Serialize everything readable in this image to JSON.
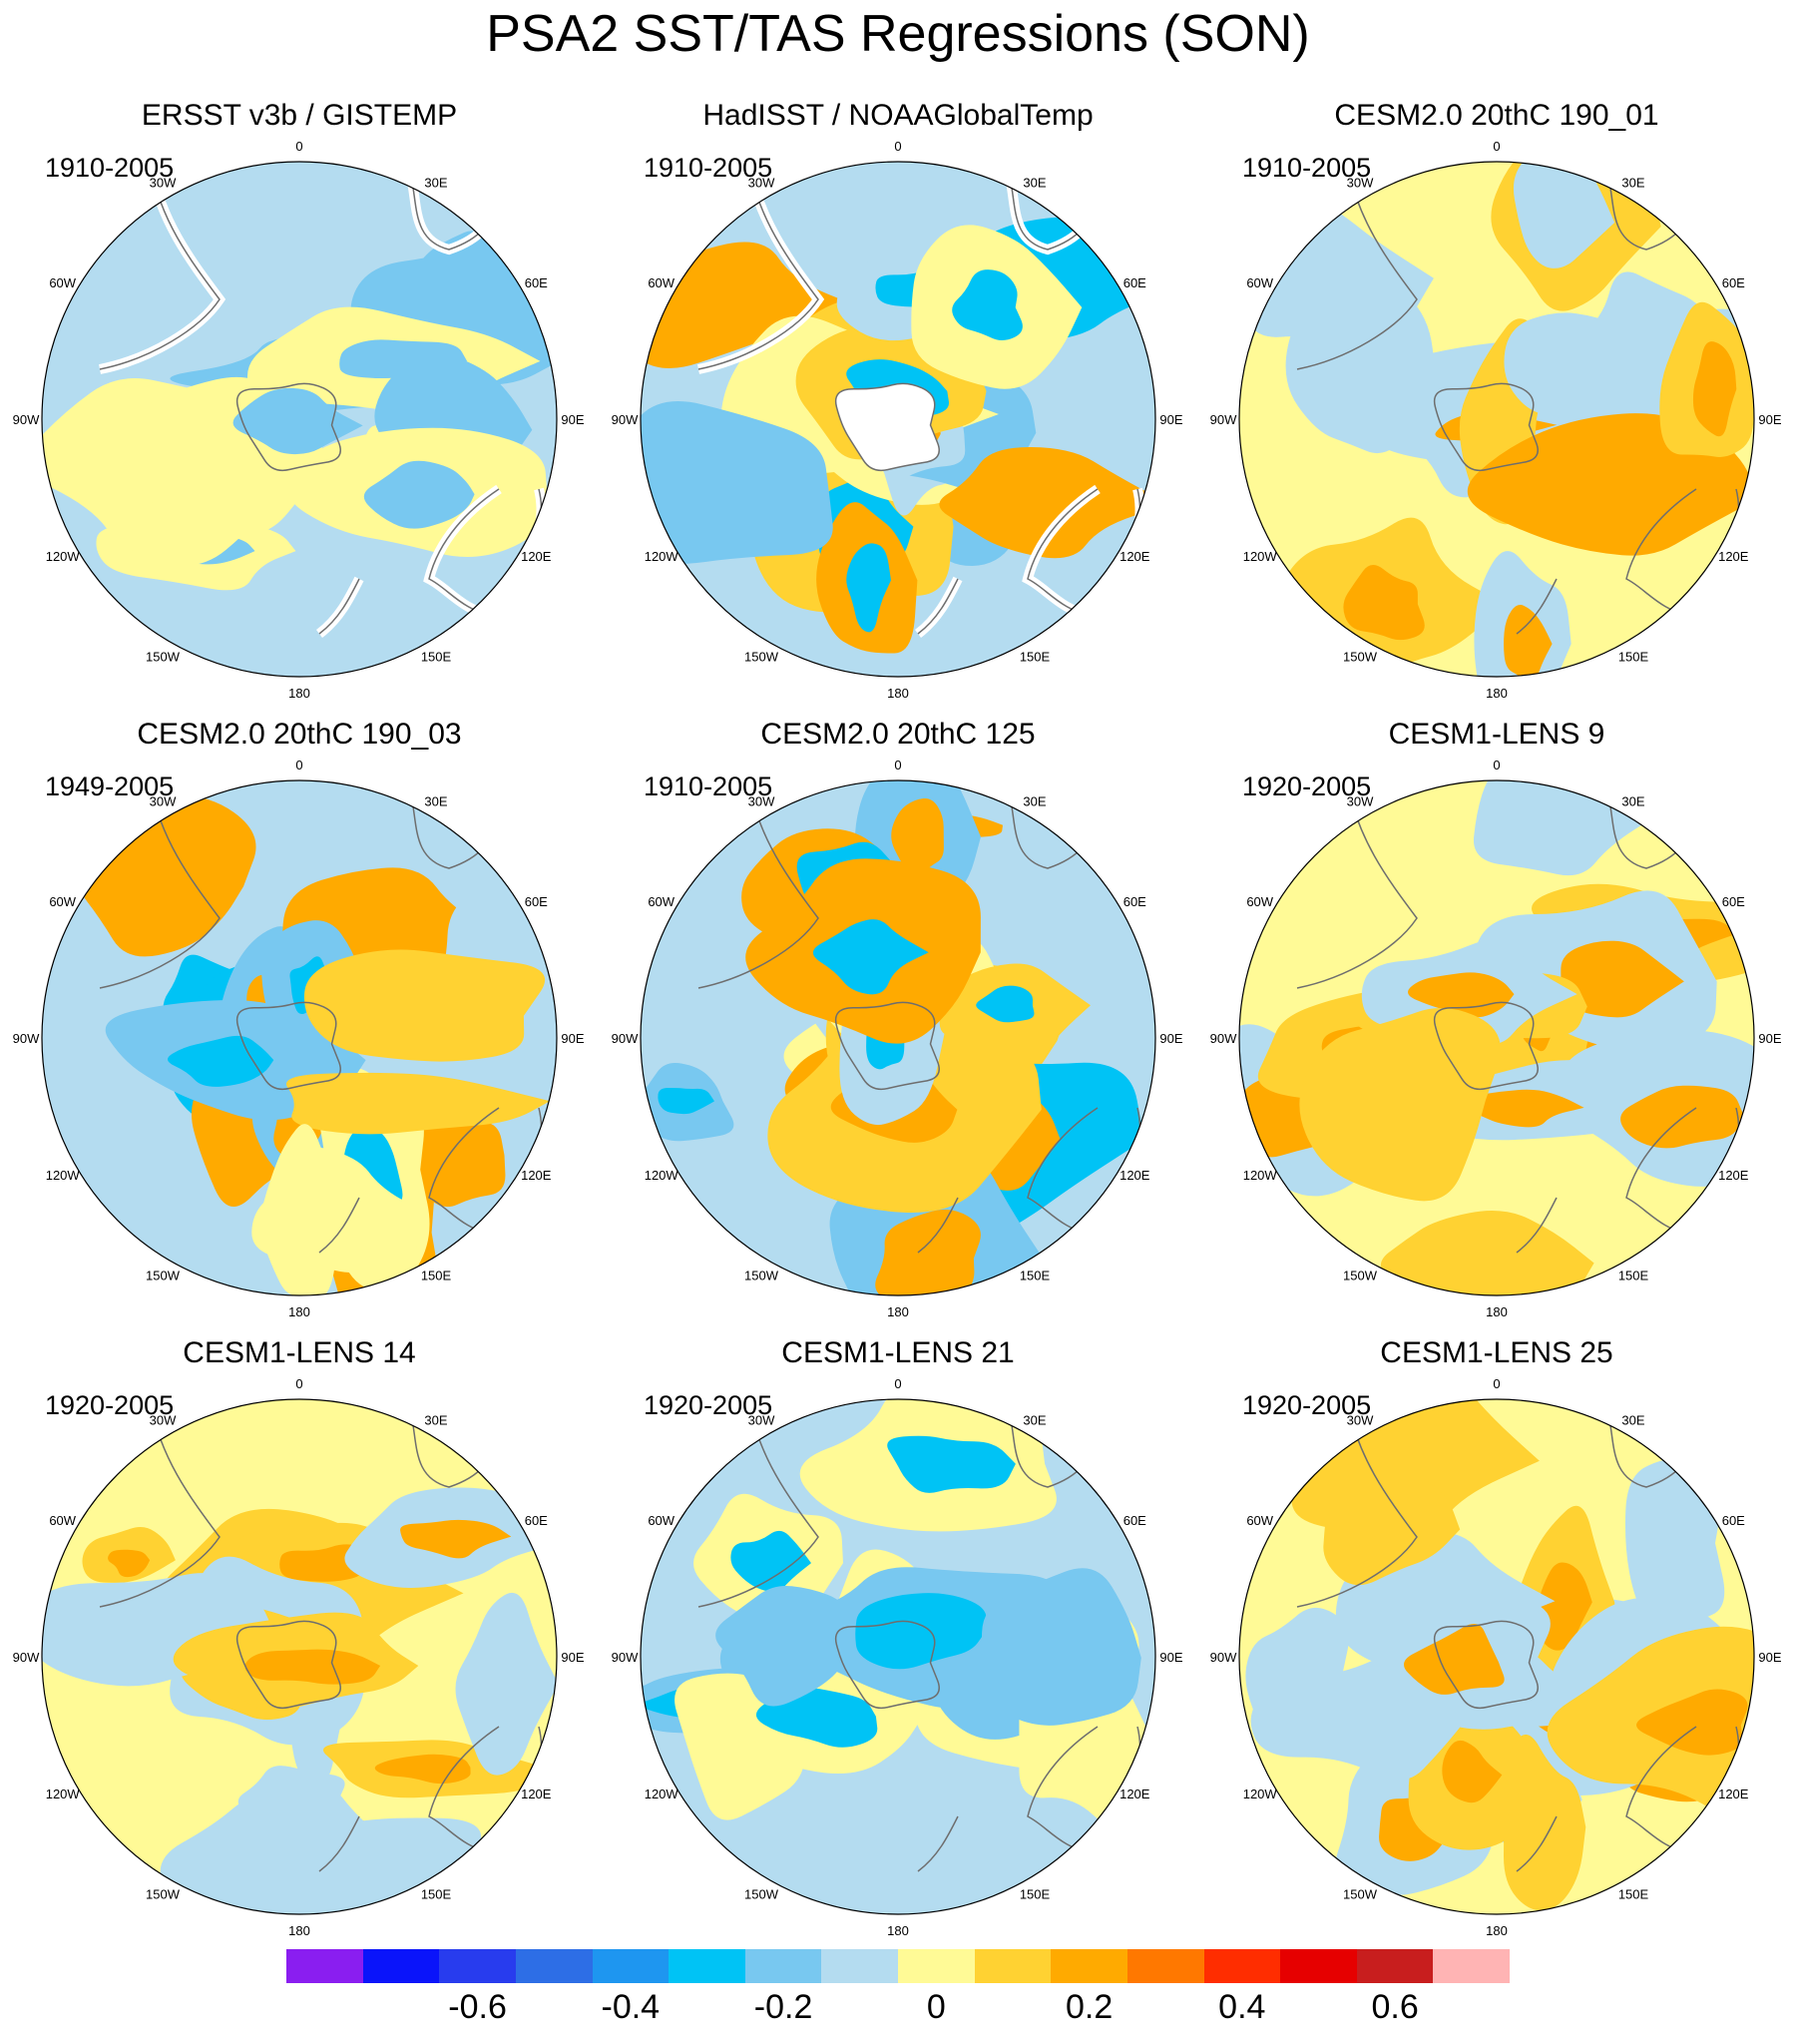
{
  "figure": {
    "title": "PSA2 SST/TAS Regressions (SON)"
  },
  "panels": [
    {
      "title": "ERSST v3b / GISTEMP",
      "period": "1910-2005",
      "dominant": "neg",
      "strength": 1,
      "landmask": "partial"
    },
    {
      "title": "HadISST / NOAAGlobalTemp",
      "period": "1910-2005",
      "dominant": "mixed",
      "strength": 3,
      "landmask": "full"
    },
    {
      "title": "CESM2.0 20thC 190_01",
      "period": "1910-2005",
      "dominant": "pos",
      "strength": 2,
      "landmask": "none"
    },
    {
      "title": "CESM2.0 20thC 190_03",
      "period": "1949-2005",
      "dominant": "mixed",
      "strength": 3,
      "landmask": "none"
    },
    {
      "title": "CESM2.0 20thC 125",
      "period": "1910-2005",
      "dominant": "mixed",
      "strength": 3,
      "landmask": "none"
    },
    {
      "title": "CESM1-LENS 9",
      "period": "1920-2005",
      "dominant": "pos",
      "strength": 2,
      "landmask": "none"
    },
    {
      "title": "CESM1-LENS 14",
      "period": "1920-2005",
      "dominant": "pos",
      "strength": 2,
      "landmask": "none"
    },
    {
      "title": "CESM1-LENS 21",
      "period": "1920-2005",
      "dominant": "neg",
      "strength": 2,
      "landmask": "none"
    },
    {
      "title": "CESM1-LENS 25",
      "period": "1920-2005",
      "dominant": "pos",
      "strength": 3,
      "landmask": "none"
    }
  ],
  "longitude_labels": [
    "0",
    "30E",
    "60E",
    "90E",
    "120E",
    "150E",
    "180",
    "150W",
    "120W",
    "90W",
    "60W",
    "30W"
  ],
  "colorbar": {
    "levels": [
      "-0.6",
      "-0.4",
      "-0.2",
      "0",
      "0.2",
      "0.4",
      "0.6"
    ],
    "colors": [
      "#8a1ef0",
      "#0a14fa",
      "#283cee",
      "#2d6ee6",
      "#1e96f0",
      "#00c3f5",
      "#78c8f0",
      "#b4dcf0",
      "#fffa96",
      "#ffd232",
      "#ffaa00",
      "#ff7800",
      "#ff2d00",
      "#e60000",
      "#c81e1e",
      "#ffb4b4"
    ]
  }
}
